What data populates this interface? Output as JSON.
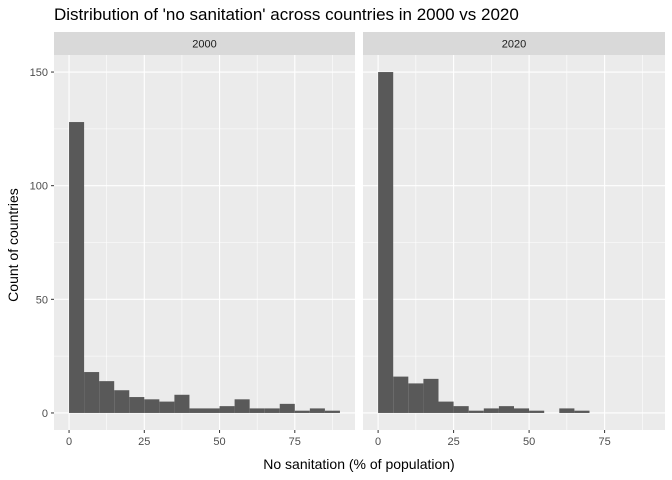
{
  "chart_data": {
    "type": "bar",
    "title": "Distribution of 'no sanitation' across countries in 2000 vs 2020",
    "xlabel": "No sanitation (% of population)",
    "ylabel": "Count of countries",
    "xlim": [
      -5,
      95
    ],
    "ylim": [
      -7.5,
      157.5
    ],
    "xticks": [
      0,
      25,
      50,
      75
    ],
    "yticks": [
      0,
      50,
      100,
      150
    ],
    "bin_width": 5,
    "bin_starts": [
      0,
      5,
      10,
      15,
      20,
      25,
      30,
      35,
      40,
      45,
      50,
      55,
      60,
      65,
      70,
      75,
      80,
      85
    ],
    "grid": true,
    "panels": [
      {
        "name": "2000",
        "values": [
          128,
          18,
          14,
          10,
          7,
          6,
          5,
          8,
          2,
          2,
          3,
          6,
          2,
          2,
          4,
          1,
          2,
          1
        ]
      },
      {
        "name": "2020",
        "values": [
          150,
          16,
          13,
          15,
          5,
          3,
          1,
          2,
          3,
          2,
          1,
          0,
          2,
          1,
          0,
          0,
          0,
          0
        ]
      }
    ]
  },
  "colors": {
    "bar": "#595959",
    "panel_bg": "#ebebeb",
    "strip_bg": "#d9d9d9",
    "grid_major": "#ffffff",
    "tick": "#333333"
  }
}
